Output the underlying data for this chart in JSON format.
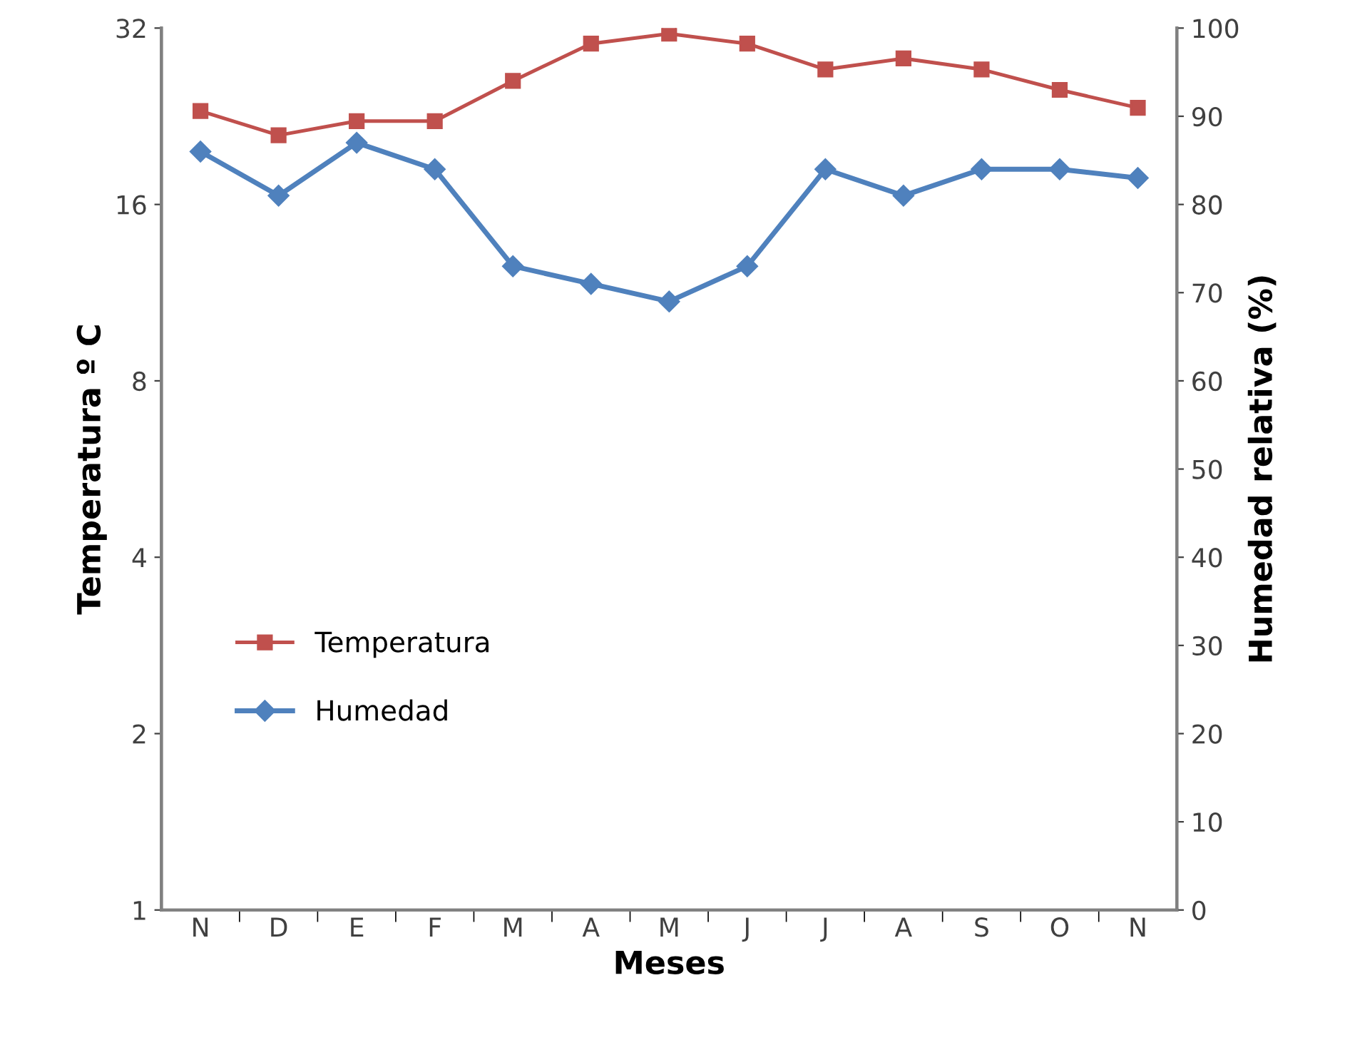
{
  "chart_data": {
    "type": "line",
    "xlabel": "Meses",
    "ylabel": "Temperatura º C",
    "y2label": "Humedad relativa (%)",
    "categories": [
      "N",
      "D",
      "E",
      "F",
      "M",
      "A",
      "M",
      "J",
      "J",
      "A",
      "S",
      "O",
      "N"
    ],
    "series": [
      {
        "name": "Temperatura",
        "color": "#c0504d",
        "marker": "square",
        "values": [
          23.1,
          21.0,
          22.2,
          22.2,
          26.0,
          30.1,
          31.3,
          30.1,
          27.2,
          28.4,
          27.2,
          25.1,
          23.4
        ]
      },
      {
        "name": "Humedad",
        "color": "#4f81bd",
        "marker": "diamond",
        "axis": "y2",
        "values": [
          86,
          81,
          87,
          84,
          73,
          71,
          69,
          73,
          84,
          81,
          84,
          84,
          83
        ]
      }
    ],
    "log": "y",
    "ylim": [
      1,
      32
    ],
    "yticks": [
      1,
      2,
      4,
      8,
      16,
      32
    ],
    "y2lim": [
      0,
      100
    ],
    "y2ticks": [
      0,
      10,
      20,
      30,
      40,
      50,
      60,
      70,
      80,
      90,
      100
    ],
    "grid": false,
    "legend": "bottom left",
    "line_style": "solid"
  }
}
